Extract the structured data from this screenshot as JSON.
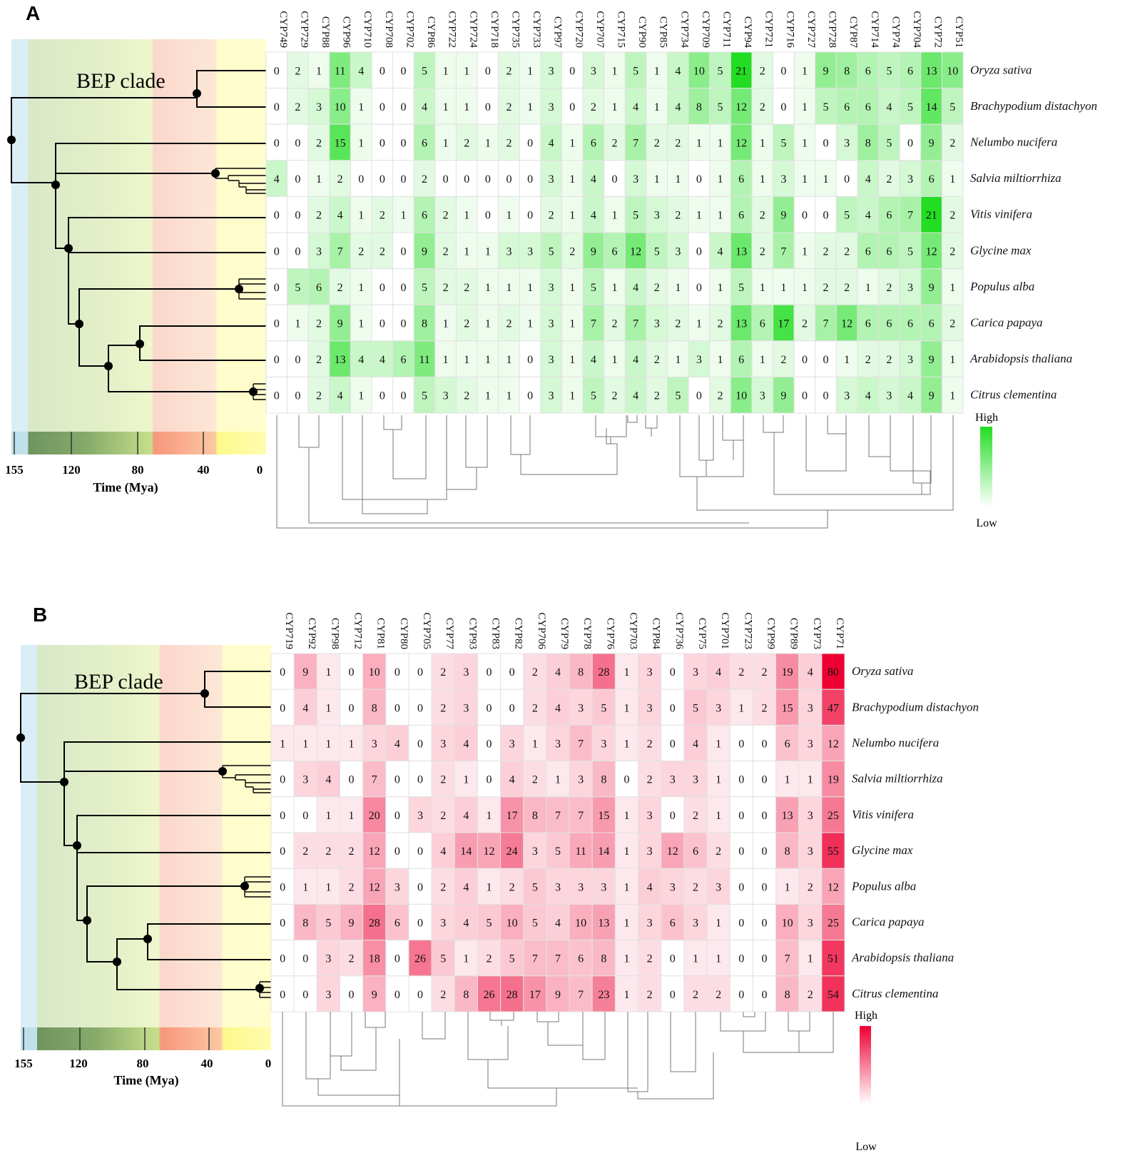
{
  "figure": {
    "time_axis_title": "Time (Mya)",
    "time_ticks": [
      155,
      120,
      80,
      40,
      0
    ],
    "clade_label": "BEP clade",
    "legend_high": "High",
    "legend_low": "Low",
    "species": [
      "Oryza sativa",
      "Brachypodium distachyon",
      "Nelumbo nucifera",
      "Salvia miltiorrhiza",
      "Vitis vinifera",
      "Glycine max",
      "Populus alba",
      "Carica papaya",
      "Arabidopsis thaliana",
      "Citrus clementina"
    ],
    "colors": {
      "panel_a_high": "#22dd22",
      "panel_b_high": "#ee0033"
    }
  },
  "chart_data": [
    {
      "type": "heatmap",
      "panel": "A",
      "colormap": "green",
      "max": 21,
      "columns": [
        "CYP749",
        "CYP729",
        "CYP88",
        "CYP96",
        "CYP710",
        "CYP708",
        "CYP702",
        "CYP86",
        "CYP722",
        "CYP724",
        "CYP718",
        "CYP735",
        "CYP733",
        "CYP97",
        "CYP720",
        "CYP707",
        "CYP715",
        "CYP90",
        "CYP85",
        "CYP734",
        "CYP709",
        "CYP711",
        "CYP94",
        "CYP721",
        "CYP716",
        "CYP727",
        "CYP728",
        "CYP87",
        "CYP714",
        "CYP74",
        "CYP704",
        "CYP72",
        "CYP51"
      ],
      "rows": [
        "Oryza sativa",
        "Brachypodium distachyon",
        "Nelumbo nucifera",
        "Salvia miltiorrhiza",
        "Vitis vinifera",
        "Glycine max",
        "Populus alba",
        "Carica papaya",
        "Arabidopsis thaliana",
        "Citrus clementina"
      ],
      "values": [
        [
          0,
          2,
          1,
          11,
          4,
          0,
          0,
          5,
          1,
          1,
          0,
          2,
          1,
          3,
          0,
          3,
          1,
          5,
          1,
          4,
          10,
          5,
          21,
          2,
          0,
          1,
          9,
          8,
          6,
          5,
          6,
          13,
          10
        ],
        [
          0,
          2,
          3,
          10,
          1,
          0,
          0,
          4,
          1,
          1,
          0,
          2,
          1,
          3,
          0,
          2,
          1,
          4,
          1,
          4,
          8,
          5,
          12,
          2,
          0,
          1,
          5,
          6,
          6,
          4,
          5,
          14,
          5
        ],
        [
          0,
          0,
          2,
          15,
          1,
          0,
          0,
          6,
          1,
          2,
          1,
          2,
          0,
          4,
          1,
          6,
          2,
          7,
          2,
          2,
          1,
          1,
          12,
          1,
          5,
          1,
          0,
          3,
          8,
          5,
          0,
          9,
          2
        ],
        [
          4,
          0,
          1,
          2,
          0,
          0,
          0,
          2,
          0,
          0,
          0,
          0,
          0,
          3,
          1,
          4,
          0,
          3,
          1,
          1,
          0,
          1,
          6,
          1,
          3,
          1,
          1,
          0,
          4,
          2,
          3,
          6,
          1
        ],
        [
          0,
          0,
          2,
          4,
          1,
          2,
          1,
          6,
          2,
          1,
          0,
          1,
          0,
          2,
          1,
          4,
          1,
          5,
          3,
          2,
          1,
          1,
          6,
          2,
          9,
          0,
          0,
          5,
          4,
          6,
          7,
          21,
          2
        ],
        [
          0,
          0,
          3,
          7,
          2,
          2,
          0,
          9,
          2,
          1,
          1,
          3,
          3,
          5,
          2,
          9,
          6,
          12,
          5,
          3,
          0,
          4,
          13,
          2,
          7,
          1,
          2,
          2,
          6,
          6,
          5,
          12,
          2
        ],
        [
          0,
          5,
          6,
          2,
          1,
          0,
          0,
          5,
          2,
          2,
          1,
          1,
          1,
          3,
          1,
          5,
          1,
          4,
          2,
          1,
          0,
          1,
          5,
          1,
          1,
          1,
          2,
          2,
          1,
          2,
          3,
          9,
          1
        ],
        [
          0,
          1,
          2,
          9,
          1,
          0,
          0,
          8,
          1,
          2,
          1,
          2,
          1,
          3,
          1,
          7,
          2,
          7,
          3,
          2,
          1,
          2,
          13,
          6,
          17,
          2,
          7,
          12,
          6,
          6,
          6,
          6,
          2
        ],
        [
          0,
          0,
          2,
          13,
          4,
          4,
          6,
          11,
          1,
          1,
          1,
          1,
          0,
          3,
          1,
          4,
          1,
          4,
          2,
          1,
          3,
          1,
          6,
          1,
          2,
          0,
          0,
          1,
          2,
          2,
          3,
          9,
          1
        ],
        [
          0,
          0,
          2,
          4,
          1,
          0,
          0,
          5,
          3,
          2,
          1,
          1,
          0,
          3,
          1,
          5,
          2,
          4,
          2,
          5,
          0,
          2,
          10,
          3,
          9,
          0,
          0,
          3,
          4,
          3,
          4,
          9,
          1
        ]
      ]
    },
    {
      "type": "heatmap",
      "panel": "B",
      "colormap": "red",
      "max": 80,
      "columns": [
        "CYP719",
        "CYP92",
        "CYP98",
        "CYP712",
        "CYP81",
        "CYP80",
        "CYP705",
        "CYP77",
        "CYP93",
        "CYP83",
        "CYP82",
        "CYP706",
        "CYP79",
        "CYP78",
        "CYP76",
        "CYP703",
        "CYP84",
        "CYP736",
        "CYP75",
        "CYP701",
        "CYP723",
        "CYP99",
        "CYP89",
        "CYP73",
        "CYP71"
      ],
      "rows": [
        "Oryza sativa",
        "Brachypodium distachyon",
        "Nelumbo nucifera",
        "Salvia miltiorrhiza",
        "Vitis vinifera",
        "Glycine max",
        "Populus alba",
        "Carica papaya",
        "Arabidopsis thaliana",
        "Citrus clementina"
      ],
      "values": [
        [
          0,
          9,
          1,
          0,
          10,
          0,
          0,
          2,
          3,
          0,
          0,
          2,
          4,
          8,
          28,
          1,
          3,
          0,
          3,
          4,
          2,
          2,
          19,
          4,
          80
        ],
        [
          0,
          4,
          1,
          0,
          8,
          0,
          0,
          2,
          3,
          0,
          0,
          2,
          4,
          3,
          5,
          1,
          3,
          0,
          5,
          3,
          1,
          2,
          15,
          3,
          47
        ],
        [
          1,
          1,
          1,
          1,
          3,
          4,
          0,
          3,
          4,
          0,
          3,
          1,
          3,
          7,
          3,
          1,
          2,
          0,
          4,
          1,
          0,
          0,
          6,
          3,
          12
        ],
        [
          0,
          3,
          4,
          0,
          7,
          0,
          0,
          2,
          1,
          0,
          4,
          2,
          1,
          3,
          8,
          0,
          2,
          3,
          3,
          1,
          0,
          0,
          1,
          1,
          19
        ],
        [
          0,
          0,
          1,
          1,
          20,
          0,
          3,
          2,
          4,
          1,
          17,
          8,
          7,
          7,
          15,
          1,
          3,
          0,
          2,
          1,
          0,
          0,
          13,
          3,
          25
        ],
        [
          0,
          2,
          2,
          2,
          12,
          0,
          0,
          4,
          14,
          12,
          24,
          3,
          5,
          11,
          14,
          1,
          3,
          12,
          6,
          2,
          0,
          0,
          8,
          3,
          55
        ],
        [
          0,
          1,
          1,
          2,
          12,
          3,
          0,
          2,
          4,
          1,
          2,
          5,
          3,
          3,
          3,
          1,
          4,
          3,
          2,
          3,
          0,
          0,
          1,
          2,
          12
        ],
        [
          0,
          8,
          5,
          9,
          28,
          6,
          0,
          3,
          4,
          5,
          10,
          5,
          4,
          10,
          13,
          1,
          3,
          6,
          3,
          1,
          0,
          0,
          10,
          3,
          25
        ],
        [
          0,
          0,
          3,
          2,
          18,
          0,
          26,
          5,
          1,
          2,
          5,
          7,
          7,
          6,
          8,
          1,
          2,
          0,
          1,
          1,
          0,
          0,
          7,
          1,
          51
        ],
        [
          0,
          0,
          3,
          0,
          9,
          0,
          0,
          2,
          8,
          26,
          28,
          17,
          9,
          7,
          23,
          1,
          2,
          0,
          2,
          2,
          0,
          0,
          8,
          2,
          54
        ]
      ]
    }
  ]
}
